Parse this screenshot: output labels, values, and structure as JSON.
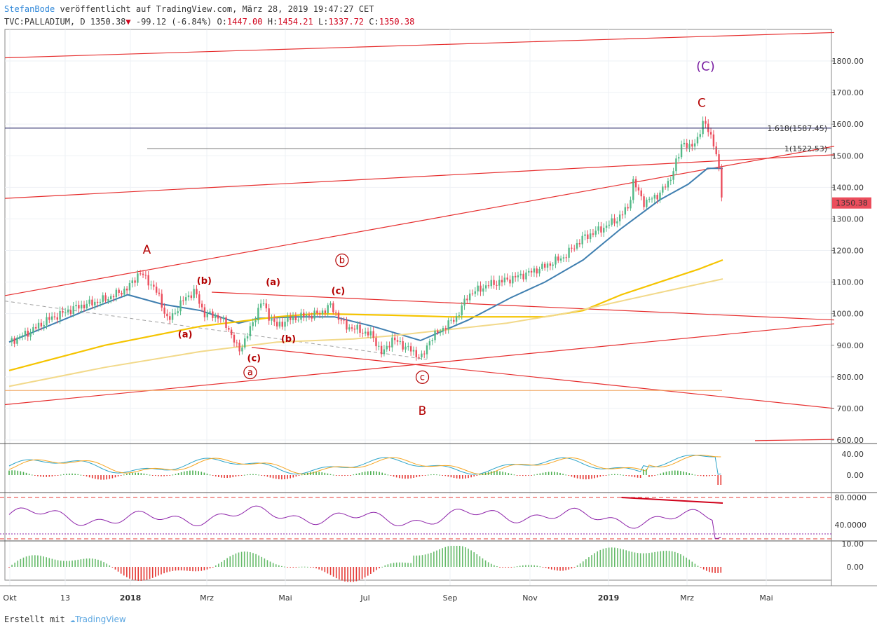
{
  "header": {
    "author": "StefanBode",
    "published": "veröffentlicht auf TradingView.com, März 28, 2019 19:47:27 CET",
    "symbol": "TVC:PALLADIUM, D 1350.38",
    "change": "-99.12 (-6.84%)",
    "o_label": "O:",
    "o_value": "1447.00",
    "h_label": "H:",
    "h_value": "1454.21",
    "l_label": "L:",
    "l_value": "1337.72",
    "c_label": "C:",
    "c_value": "1350.38"
  },
  "footer": {
    "created": "Erstellt mit",
    "brand": "TradingView"
  },
  "colors": {
    "up": "#53b987",
    "down": "#eb4d5c",
    "trend": "#e62e2e",
    "ma_blue": "#3f7fb0",
    "ma_yellow": "#f5c400",
    "ma_beige": "#f2d98a",
    "wave_red": "#b30000",
    "wave_purple": "#7a1fa2",
    "fib": "#3a3ab5",
    "macd_fast": "#2ea5c9",
    "macd_slow": "#f5a623",
    "rsi": "#8e24aa",
    "price_tag": "#eb4d5c"
  },
  "chart_data": {
    "type": "candlestick",
    "x_ticks": [
      "Okt",
      "13",
      "2018",
      "Mrz",
      "Mai",
      "Jul",
      "Sep",
      "Nov",
      "2019",
      "Mrz",
      "Mai"
    ],
    "y_ticks": [
      "1800.00",
      "1700.00",
      "1600.00",
      "1500.00",
      "1400.00",
      "1300.00",
      "1200.00",
      "1100.00",
      "1000.00",
      "900.00",
      "800.00",
      "700.00",
      "600.00"
    ],
    "ylim": [
      600,
      1900
    ],
    "last_price": "1350.38",
    "price_path": [
      [
        0,
        910
      ],
      [
        10,
        940
      ],
      [
        20,
        980
      ],
      [
        35,
        1020
      ],
      [
        50,
        1045
      ],
      [
        62,
        1080
      ],
      [
        68,
        1130
      ],
      [
        72,
        1110
      ],
      [
        78,
        1060
      ],
      [
        83,
        975
      ],
      [
        92,
        1050
      ],
      [
        97,
        1070
      ],
      [
        102,
        1000
      ],
      [
        110,
        990
      ],
      [
        115,
        950
      ],
      [
        120,
        880
      ],
      [
        126,
        950
      ],
      [
        132,
        1040
      ],
      [
        136,
        990
      ],
      [
        140,
        960
      ],
      [
        145,
        980
      ],
      [
        152,
        990
      ],
      [
        162,
        1000
      ],
      [
        168,
        1025
      ],
      [
        172,
        990
      ],
      [
        176,
        960
      ],
      [
        182,
        950
      ],
      [
        190,
        930
      ],
      [
        195,
        870
      ],
      [
        200,
        920
      ],
      [
        206,
        900
      ],
      [
        212,
        875
      ],
      [
        216,
        860
      ],
      [
        220,
        920
      ],
      [
        228,
        960
      ],
      [
        234,
        990
      ],
      [
        240,
        1060
      ],
      [
        250,
        1090
      ],
      [
        262,
        1110
      ],
      [
        272,
        1130
      ],
      [
        280,
        1150
      ],
      [
        290,
        1180
      ],
      [
        300,
        1240
      ],
      [
        310,
        1270
      ],
      [
        318,
        1300
      ],
      [
        324,
        1340
      ],
      [
        326,
        1420
      ],
      [
        332,
        1350
      ],
      [
        340,
        1380
      ],
      [
        345,
        1420
      ],
      [
        350,
        1500
      ],
      [
        352,
        1550
      ],
      [
        356,
        1520
      ],
      [
        360,
        1560
      ],
      [
        363,
        1605
      ],
      [
        366,
        1580
      ],
      [
        369,
        1520
      ],
      [
        371,
        1450
      ],
      [
        373,
        1350
      ]
    ],
    "moving_averages": [
      {
        "values": [
          [
            0,
            910
          ],
          [
            40,
            1010
          ],
          [
            62,
            1060
          ],
          [
            80,
            1030
          ],
          [
            100,
            1010
          ],
          [
            120,
            970
          ],
          [
            130,
            985
          ],
          [
            150,
            990
          ],
          [
            170,
            990
          ],
          [
            190,
            960
          ],
          [
            215,
            915
          ],
          [
            240,
            980
          ],
          [
            262,
            1050
          ],
          [
            280,
            1100
          ],
          [
            300,
            1170
          ],
          [
            320,
            1270
          ],
          [
            340,
            1360
          ],
          [
            355,
            1410
          ],
          [
            365,
            1460
          ],
          [
            373,
            1460
          ]
        ]
      },
      {
        "values": [
          [
            0,
            820
          ],
          [
            50,
            900
          ],
          [
            100,
            960
          ],
          [
            140,
            990
          ],
          [
            160,
            1000
          ],
          [
            200,
            995
          ],
          [
            230,
            990
          ],
          [
            260,
            990
          ],
          [
            280,
            990
          ],
          [
            300,
            1010
          ],
          [
            320,
            1060
          ],
          [
            340,
            1100
          ],
          [
            360,
            1140
          ],
          [
            373,
            1170
          ]
        ]
      },
      {
        "values": [
          [
            0,
            770
          ],
          [
            50,
            830
          ],
          [
            100,
            880
          ],
          [
            140,
            910
          ],
          [
            180,
            920
          ],
          [
            200,
            930
          ],
          [
            230,
            950
          ],
          [
            260,
            970
          ],
          [
            290,
            1000
          ],
          [
            320,
            1040
          ],
          [
            350,
            1080
          ],
          [
            373,
            1110
          ]
        ]
      }
    ],
    "fib_levels": [
      {
        "label": "1.618(1587.45)",
        "value": 1587.45
      },
      {
        "label": "1(1522.53)",
        "value": 1522.53
      }
    ],
    "waves": [
      {
        "text": "(C)",
        "x": 364,
        "y": 1770
      },
      {
        "text": "C",
        "x": 362,
        "y": 1655
      },
      {
        "text": "A",
        "x": 72,
        "y": 1190
      },
      {
        "text": "B",
        "x": 216,
        "y": 680
      },
      {
        "text": "(b)",
        "x": 102,
        "y": 1095
      },
      {
        "text": "(a)",
        "x": 92,
        "y": 925
      },
      {
        "text": "(c)",
        "x": 128,
        "y": 850
      },
      {
        "text": "(a)",
        "x": 138,
        "y": 1090
      },
      {
        "text": "(b)",
        "x": 146,
        "y": 910
      },
      {
        "text": "(c)",
        "x": 172,
        "y": 1062
      },
      {
        "text": "a",
        "x": 126,
        "y": 805
      },
      {
        "text": "b",
        "x": 174,
        "y": 1160
      },
      {
        "text": "c",
        "x": 216,
        "y": 790
      }
    ],
    "macd": {
      "y_ticks": [
        "40.00",
        "0.00"
      ]
    },
    "rsi": {
      "y_ticks": [
        "80.0000",
        "40.0000"
      ]
    },
    "histogram": {
      "y_ticks": [
        "10.00",
        "0.00"
      ]
    }
  }
}
